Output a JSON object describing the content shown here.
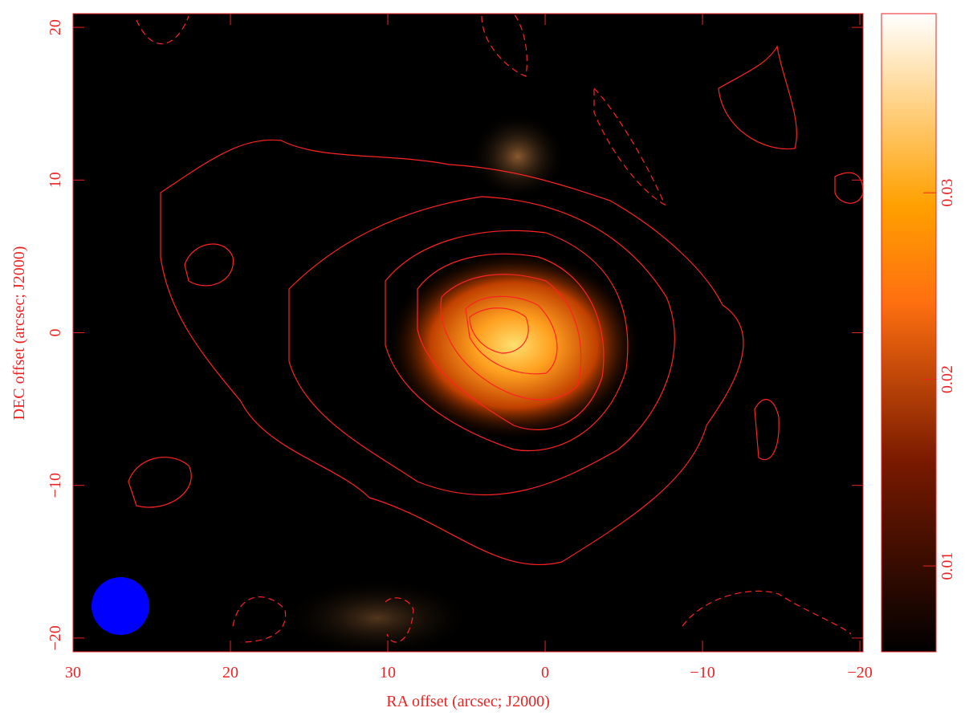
{
  "chart_data": {
    "type": "image",
    "xlabel": "RA offset (arcsec; J2000)",
    "ylabel": "DEC offset (arcsec; J2000)",
    "xlim": [
      30,
      -20.2
    ],
    "ylim": [
      -20.9,
      20.9
    ],
    "xticks": [
      30,
      20,
      10,
      0,
      {
        "value": -10,
        "label": "−10"
      },
      {
        "value": -20,
        "label": "−20"
      }
    ],
    "yticks": [
      {
        "value": -20,
        "label": "−20"
      },
      {
        "value": -10,
        "label": "−10"
      },
      0,
      10,
      20
    ],
    "colorbar": {
      "lim": [
        0.0054,
        0.0396
      ],
      "ticks": [
        0.01,
        0.02,
        0.03
      ]
    },
    "color": "#ee2222"
  }
}
